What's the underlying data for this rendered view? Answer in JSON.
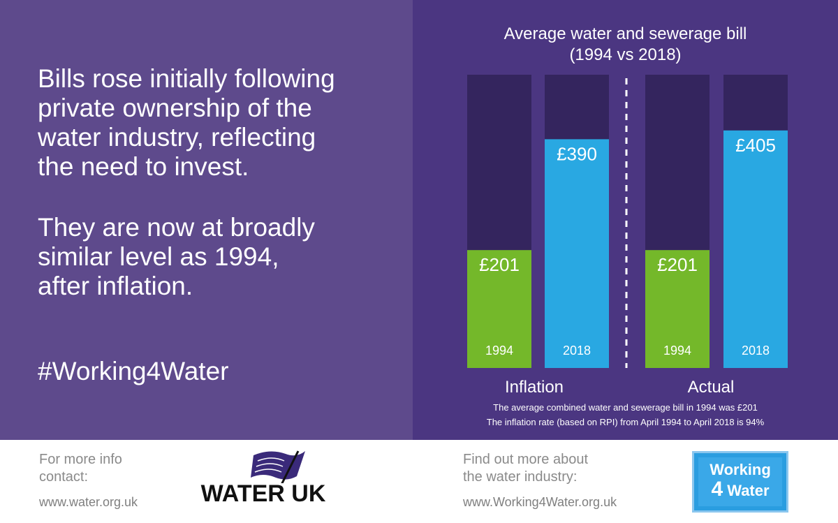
{
  "headline": {
    "paragraph1": [
      "Bills rose initially following",
      "private ownership of the",
      "water industry, reflecting",
      "the need to invest."
    ],
    "paragraph2": [
      "They are now at broadly",
      "similar level as 1994,",
      "after inflation."
    ],
    "hashtag": "#Working4Water"
  },
  "colors": {
    "left_panel": "#5e4a8c",
    "right_panel": "#4b3681",
    "bar_background": "#34255e",
    "green": "#74b82a",
    "blue": "#29a8e2",
    "divider": "#ffffff"
  },
  "chart_data": {
    "type": "bar",
    "title": [
      "Average water and sewerage bill",
      "(1994 vs 2018)"
    ],
    "groups": [
      "Inflation",
      "Actual"
    ],
    "bars": [
      {
        "group": "Inflation",
        "year": "1994",
        "value": 201,
        "label": "£201",
        "color": "green"
      },
      {
        "group": "Inflation",
        "year": "2018",
        "value": 390,
        "label": "£390",
        "color": "blue"
      },
      {
        "group": "Actual",
        "year": "1994",
        "value": 201,
        "label": "£201",
        "color": "green"
      },
      {
        "group": "Actual",
        "year": "2018",
        "value": 405,
        "label": "£405",
        "color": "blue"
      }
    ],
    "ylim": [
      0,
      500
    ],
    "notes": [
      "The average combined water and sewerage bill in 1994 was £201",
      "The inflation rate (based on RPI) from April 1994 to April 2018 is 94%"
    ]
  },
  "footer": {
    "left": {
      "line1": "For more info",
      "line2": "contact:",
      "link": "www.water.org.uk"
    },
    "water_uk_logo": "WATER UK",
    "right": {
      "line1": "Find out more about",
      "line2": "the water industry:",
      "link": "www.Working4Water.org.uk"
    },
    "w4w_logo": {
      "line1": "Working",
      "line2_num": "4",
      "line2_word": "Water"
    }
  }
}
